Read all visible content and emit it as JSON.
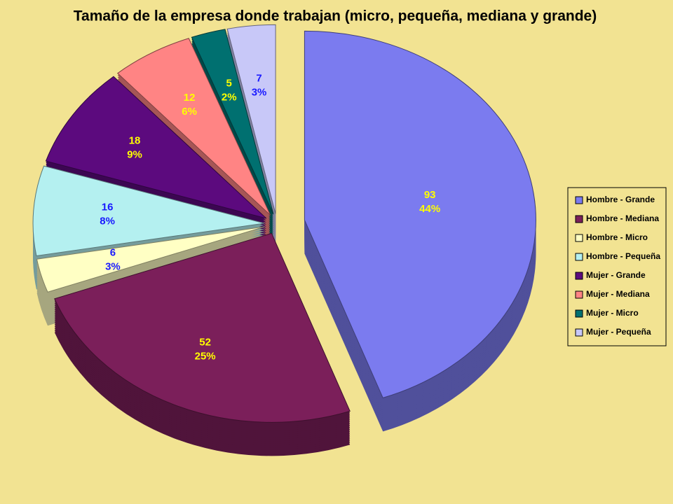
{
  "chart_data": {
    "type": "pie",
    "title": "Tamaño de la empresa donde trabajan (micro, pequeña, mediana y grande)",
    "categories": [
      "Hombre - Grande",
      "Hombre - Mediana",
      "Hombre - Micro",
      "Hombre - Pequeña",
      "Mujer - Grande",
      "Mujer - Mediana",
      "Mujer - Micro",
      "Mujer - Pequeña"
    ],
    "values": [
      93,
      52,
      6,
      16,
      18,
      12,
      5,
      7
    ],
    "percent_labels": [
      "44%",
      "25%",
      "3%",
      "8%",
      "9%",
      "6%",
      "2%",
      "3%"
    ],
    "colors": [
      "#7b7bef",
      "#7b1f5a",
      "#ffffc4",
      "#b4f0f0",
      "#5c0a7e",
      "#ff8484",
      "#007070",
      "#c8c8f8"
    ],
    "label_colors": [
      "#ffff00",
      "#ffff00",
      "#1a1aff",
      "#1a1aff",
      "#ffff00",
      "#ffff00",
      "#ffff00",
      "#1a1aff"
    ],
    "legend": "right"
  }
}
